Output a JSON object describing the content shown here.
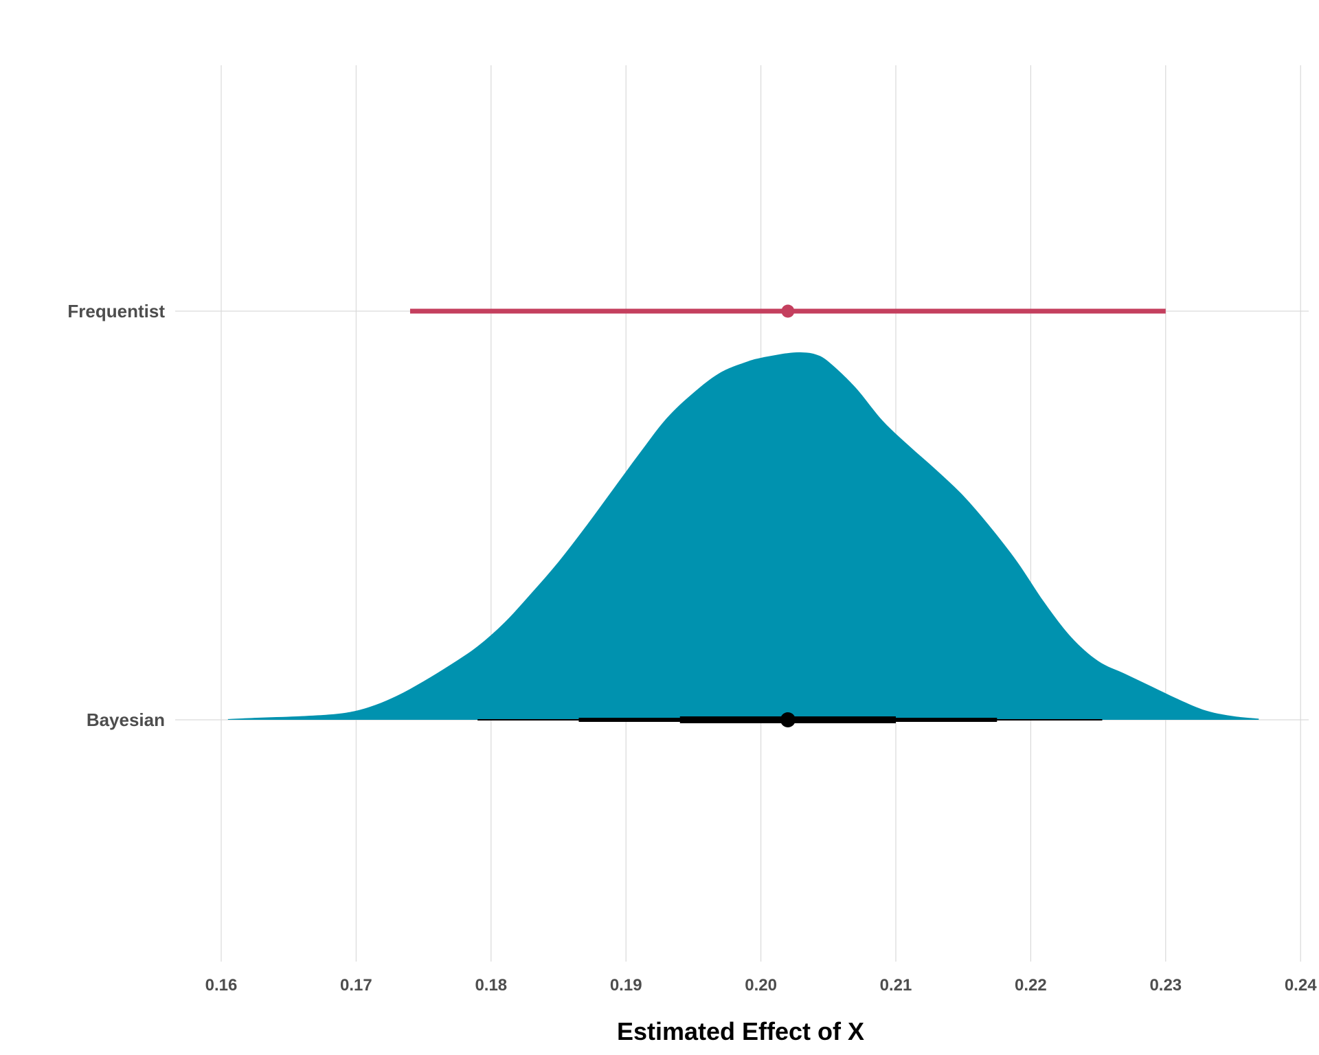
{
  "chart_data": {
    "type": "interval-density",
    "title": "",
    "xlabel": "Estimated Effect of X",
    "ylabel": "",
    "xlim": [
      0.156,
      0.241
    ],
    "x_ticks": [
      0.16,
      0.17,
      0.18,
      0.19,
      0.2,
      0.21,
      0.22,
      0.23,
      0.24
    ],
    "x_tick_labels": [
      "0.16",
      "0.17",
      "0.18",
      "0.19",
      "0.20",
      "0.21",
      "0.22",
      "0.23",
      "0.24"
    ],
    "categories": [
      "Frequentist",
      "Bayesian"
    ],
    "grid": true,
    "colors": {
      "frequentist": "#C43F5E",
      "density": "#0092AF",
      "bayes_interval": "#000000"
    },
    "frequentist": {
      "estimate": 0.202,
      "ci_low": 0.174,
      "ci_high": 0.23
    },
    "bayesian": {
      "median": 0.202,
      "intervals": [
        {
          "level": 0.66,
          "low": 0.194,
          "high": 0.21
        },
        {
          "level": 0.95,
          "low": 0.1865,
          "high": 0.2175
        },
        {
          "level": 0.99,
          "low": 0.179,
          "high": 0.2253
        }
      ],
      "density": {
        "x": [
          0.1605,
          0.163,
          0.166,
          0.169,
          0.171,
          0.173,
          0.175,
          0.177,
          0.179,
          0.181,
          0.183,
          0.185,
          0.187,
          0.189,
          0.191,
          0.193,
          0.195,
          0.197,
          0.199,
          0.2,
          0.201,
          0.202,
          0.203,
          0.204,
          0.205,
          0.207,
          0.209,
          0.211,
          0.213,
          0.215,
          0.217,
          0.219,
          0.221,
          0.223,
          0.225,
          0.227,
          0.229,
          0.231,
          0.233,
          0.235,
          0.2369
        ],
        "y": [
          0.002,
          0.006,
          0.01,
          0.018,
          0.035,
          0.065,
          0.105,
          0.15,
          0.2,
          0.265,
          0.345,
          0.43,
          0.525,
          0.625,
          0.725,
          0.82,
          0.89,
          0.945,
          0.975,
          0.985,
          0.992,
          0.998,
          1.0,
          0.995,
          0.975,
          0.905,
          0.815,
          0.745,
          0.68,
          0.61,
          0.525,
          0.43,
          0.32,
          0.225,
          0.16,
          0.125,
          0.09,
          0.055,
          0.025,
          0.01,
          0.003
        ]
      }
    }
  }
}
